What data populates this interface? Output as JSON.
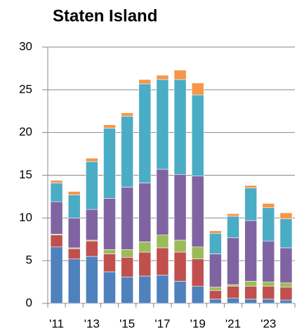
{
  "chart_data": {
    "type": "stacked_bar",
    "title": "Staten Island",
    "categories": [
      "'11",
      null,
      "'13",
      null,
      "'15",
      null,
      "'17",
      null,
      "'19",
      null,
      "'21",
      null,
      "'23",
      null
    ],
    "series": [
      {
        "color": "#4f81bd",
        "values": [
          6.6,
          5.2,
          5.5,
          3.7,
          3.1,
          3.2,
          3.3,
          2.6,
          2.0,
          0.5,
          0.6,
          0.5,
          0.5,
          0.4
        ]
      },
      {
        "color": "#c0504d",
        "values": [
          1.4,
          1.2,
          1.8,
          2.1,
          2.3,
          2.8,
          3.2,
          3.4,
          3.2,
          1.0,
          1.4,
          1.5,
          1.5,
          1.5
        ]
      },
      {
        "color": "#9bbb59",
        "values": [
          0.1,
          0.1,
          0.1,
          0.5,
          0.9,
          1.2,
          1.5,
          1.4,
          1.4,
          0.4,
          0.2,
          0.6,
          0.5,
          0.5
        ]
      },
      {
        "color": "#8064a2",
        "values": [
          3.8,
          3.5,
          3.6,
          6.0,
          7.3,
          6.9,
          7.7,
          7.7,
          8.3,
          3.9,
          5.5,
          7.1,
          4.8,
          4.1
        ]
      },
      {
        "color": "#4bacc6",
        "values": [
          2.2,
          2.7,
          5.6,
          8.2,
          8.3,
          11.6,
          10.5,
          11.1,
          9.5,
          2.4,
          2.5,
          3.8,
          3.9,
          3.4
        ]
      },
      {
        "color": "#f79646",
        "values": [
          0.3,
          0.4,
          0.4,
          0.4,
          0.4,
          0.5,
          0.5,
          1.1,
          1.4,
          0.3,
          0.3,
          0.3,
          0.5,
          0.7
        ]
      }
    ],
    "ylim": [
      0,
      30
    ],
    "yticks": [
      0,
      5,
      10,
      15,
      20,
      25,
      30
    ],
    "grid": true
  }
}
